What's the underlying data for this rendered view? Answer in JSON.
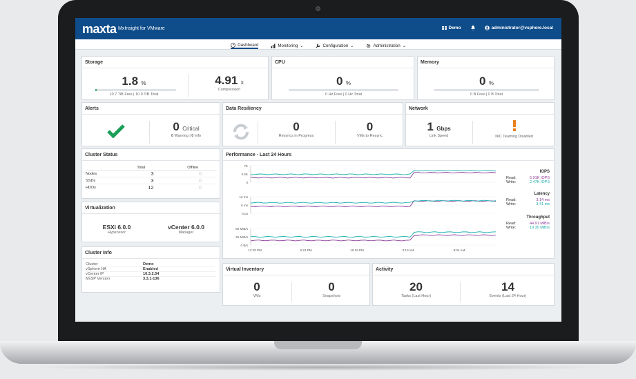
{
  "app": {
    "logo": "maxta",
    "name": "MxInsight for VMware",
    "user_menu": "Demo",
    "account": "administrator@vsphere.local"
  },
  "nav": [
    {
      "label": "Dashboard",
      "icon": "dashboard-icon"
    },
    {
      "label": "Monitoring",
      "icon": "chart-icon"
    },
    {
      "label": "Configuration",
      "icon": "wrench-icon"
    },
    {
      "label": "Administration",
      "icon": "gear-icon"
    }
  ],
  "storage": {
    "title": "Storage",
    "value": "1.8",
    "unit": "%",
    "used_fraction": 0.018,
    "caption": "10.7 TiB Free  |  10.9 TiB Total",
    "compression": "4.91",
    "compression_unit": "x",
    "compression_label": "Compression"
  },
  "cpu": {
    "title": "CPU",
    "value": "0",
    "unit": "%",
    "used_fraction": 0,
    "caption": "0 Hz Free  |  0 Hz Total"
  },
  "memory": {
    "title": "Memory",
    "value": "0",
    "unit": "%",
    "used_fraction": 0,
    "caption": "0 B Free  |  0 B Total"
  },
  "alerts": {
    "title": "Alerts",
    "value": "0",
    "label": "Critical",
    "warning_count": "0",
    "warning_label": "Warning",
    "info_count": "0",
    "info_label": "Info"
  },
  "resiliency": {
    "title": "Data Resiliency",
    "resyncs": "0",
    "resyncs_label": "Resyncs in Progress",
    "vms": "0",
    "vms_label": "VMs to Resync"
  },
  "network": {
    "title": "Network",
    "speed": "1",
    "speed_unit": "Gbps",
    "speed_label": "Link Speed",
    "nic_label": "NIC Teaming Disabled",
    "alert_color": "#e8811f"
  },
  "cluster_status": {
    "title": "Cluster Status",
    "col_total": "Total",
    "col_offline": "Offline",
    "rows": [
      {
        "name": "Nodes",
        "total": "3",
        "offline": "0"
      },
      {
        "name": "SSDs",
        "total": "3",
        "offline": "0"
      },
      {
        "name": "HDDs",
        "total": "12",
        "offline": "0"
      }
    ]
  },
  "virtualization": {
    "title": "Virtualization",
    "hypervisor": "ESXi 6.0.0",
    "hypervisor_label": "Hypervisor",
    "manager": "vCenter 6.0.0",
    "manager_label": "Manager"
  },
  "cluster_info": {
    "title": "Cluster Info",
    "rows": [
      {
        "key": "Cluster",
        "value": "Demo"
      },
      {
        "key": "vSphere HA",
        "value": "Enabled"
      },
      {
        "key": "vCenter IP",
        "value": "10.3.2.54"
      },
      {
        "key": "MxSP Version",
        "value": "3.3.1-136"
      }
    ]
  },
  "performance": {
    "title": "Performance - Last 24 Hours",
    "x_ticks": [
      "12:29 PM",
      "5:23 PM",
      "10:16 PM",
      "3:10 AM",
      "8:04 AM"
    ],
    "iops": {
      "title": "IOPS",
      "read_label": "Read:",
      "read": "5.91K IOPS",
      "write_label": "Write:",
      "write": "2.47K IOPS",
      "ticks": [
        "7K",
        "3.5K",
        "0"
      ]
    },
    "latency": {
      "title": "Latency",
      "read_label": "Read:",
      "read": "3.14 ms",
      "write_label": "Write:",
      "write": "3.41 ms",
      "ticks": [
        "12 ms",
        "6 ms",
        "0 µs"
      ]
    },
    "throughput": {
      "title": "Throughput",
      "read_label": "Read:",
      "read": "44.91 MiB/s",
      "write_label": "Write:",
      "write": "19.30 MiB/s",
      "ticks": [
        "50 MiB/s",
        "25 MiB/s",
        "0 B/s"
      ]
    },
    "colors": {
      "read": "#8a3a9b",
      "write": "#17b0ad",
      "other": "#3a6aa8"
    }
  },
  "virtual_inventory": {
    "title": "Virtual Inventory",
    "vms": "0",
    "vms_label": "VMs",
    "snapshots": "0",
    "snapshots_label": "Snapshots"
  },
  "activity": {
    "title": "Activity",
    "tasks": "20",
    "tasks_label": "Tasks (Last Hour)",
    "events": "14",
    "events_label": "Events (Last 24 Hour)"
  }
}
